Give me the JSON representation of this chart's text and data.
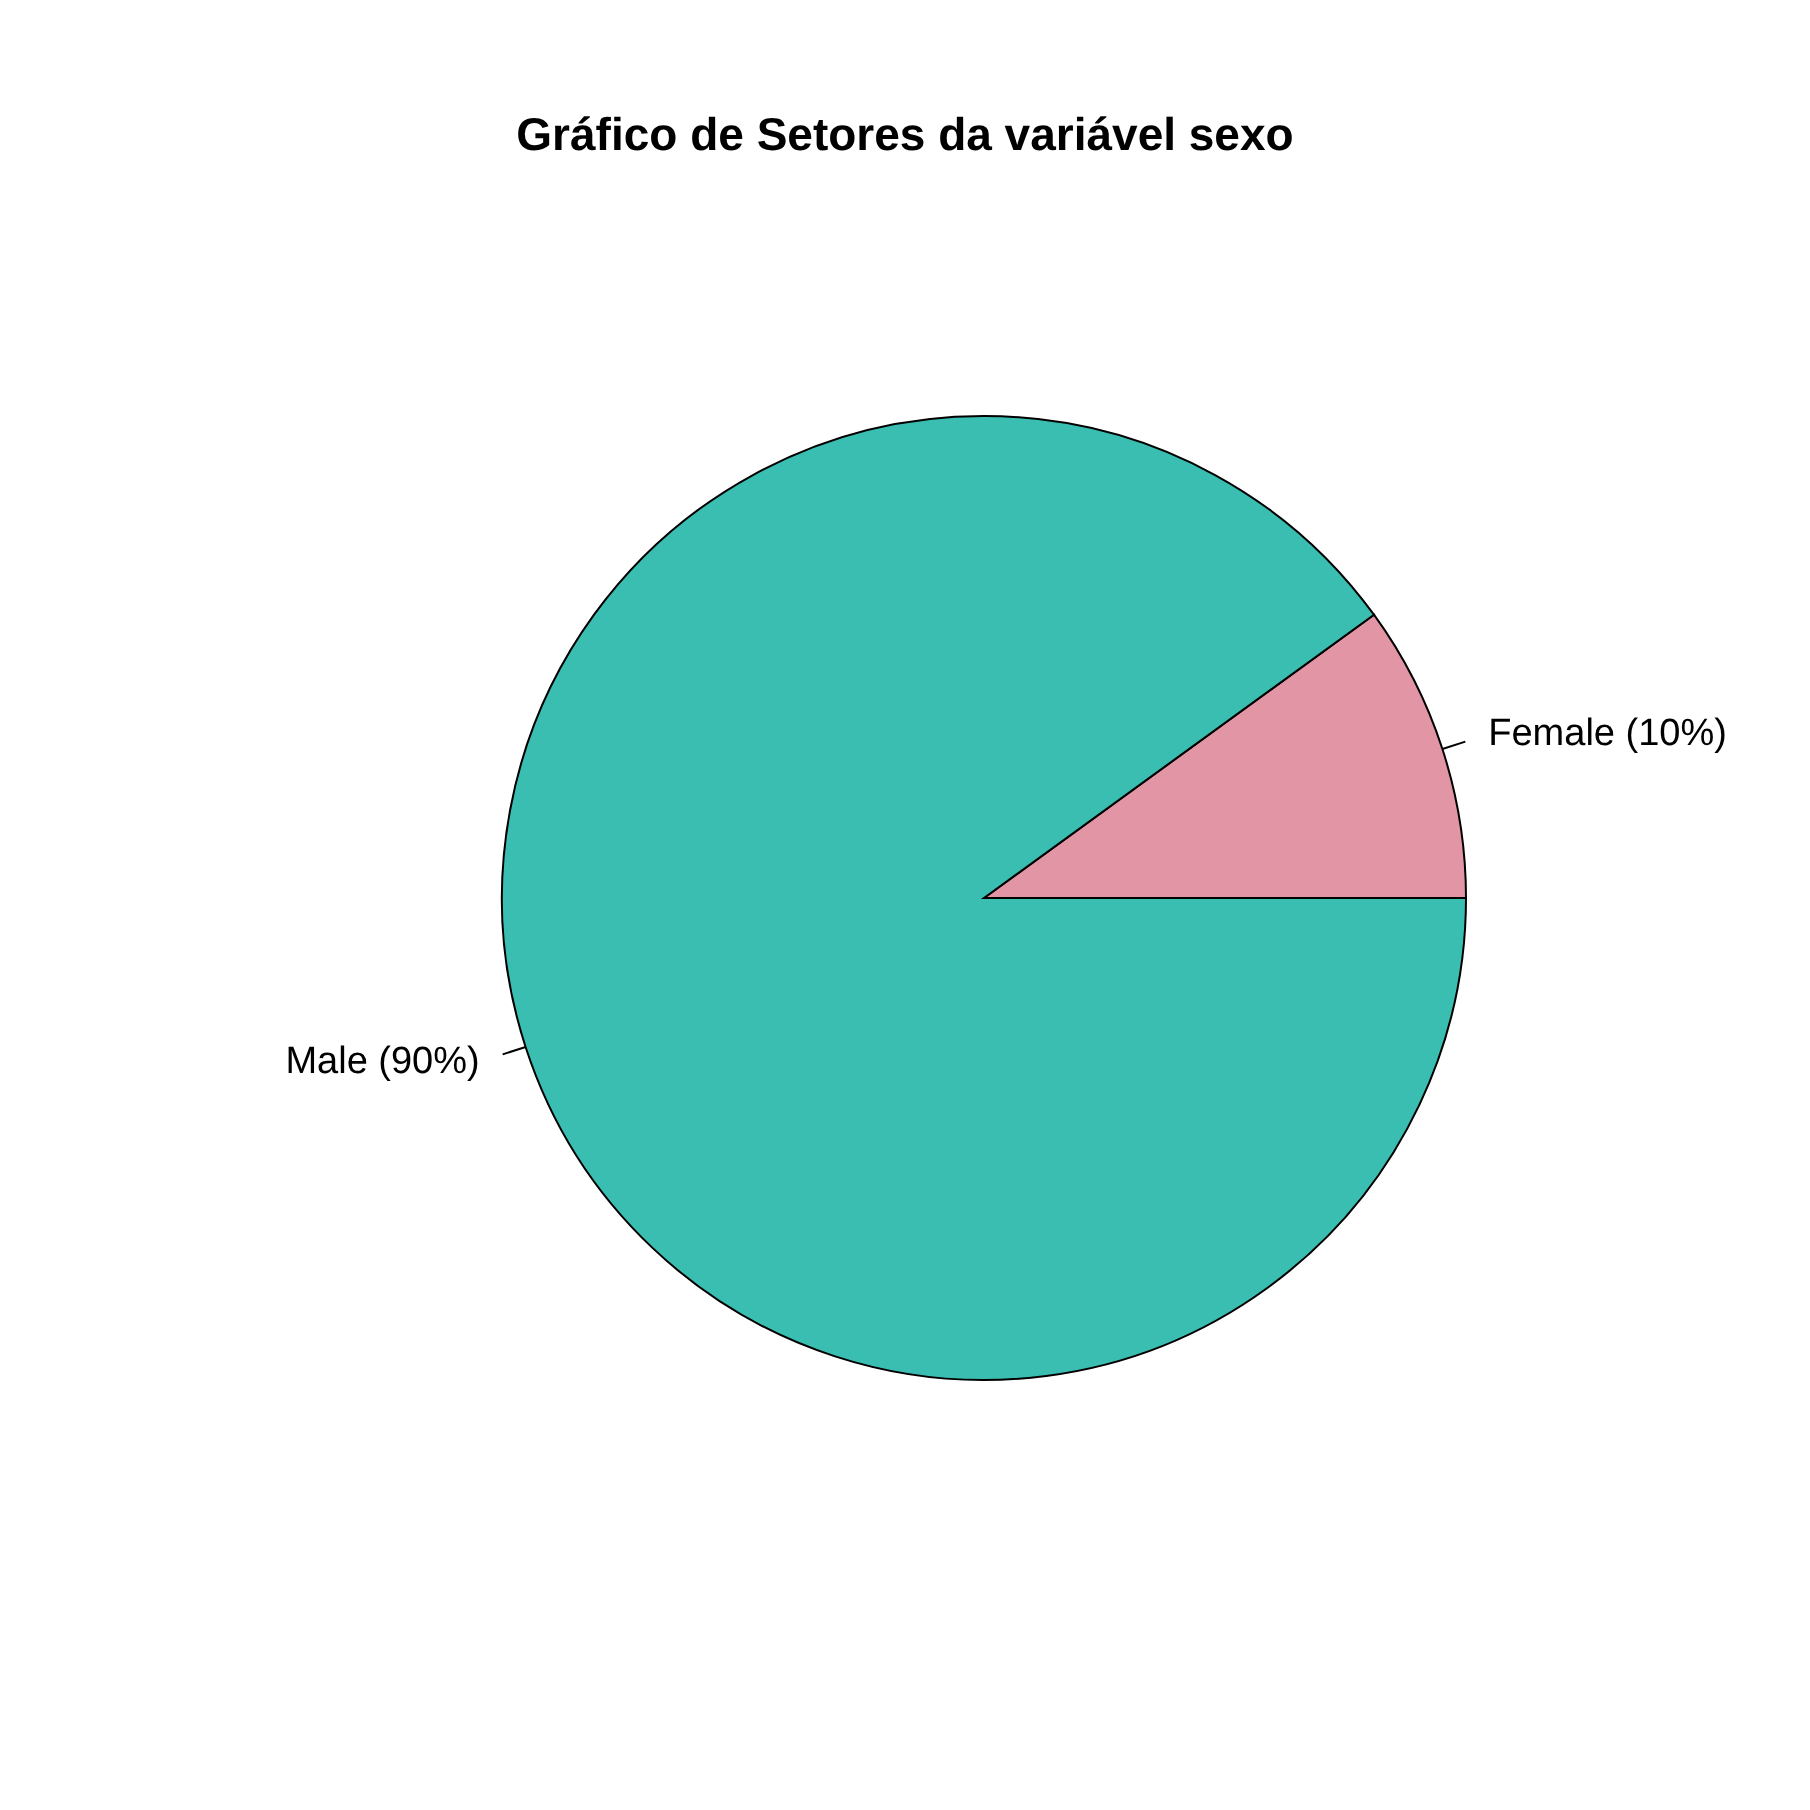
{
  "chart_data": {
    "type": "pie",
    "title": "Gráfico de Setores da variável sexo",
    "categories": [
      "Female (10%)",
      "Male (90%)"
    ],
    "values": [
      10,
      90
    ],
    "colors": [
      "#e195a5",
      "#3bbeb2"
    ]
  }
}
